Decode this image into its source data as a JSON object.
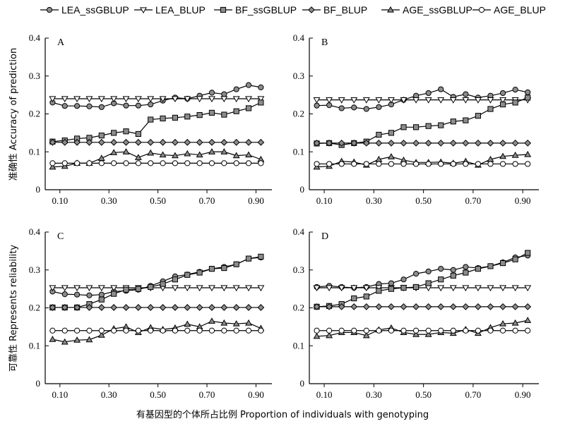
{
  "chart_data": {
    "type": "line",
    "x": [
      0.07,
      0.12,
      0.17,
      0.22,
      0.27,
      0.32,
      0.37,
      0.42,
      0.47,
      0.52,
      0.57,
      0.62,
      0.67,
      0.72,
      0.77,
      0.82,
      0.87,
      0.92
    ],
    "x_ticks": [
      "0.10",
      "0.30",
      "0.50",
      "0.70",
      "0.90"
    ],
    "x_tick_values": [
      0.1,
      0.3,
      0.5,
      0.7,
      0.9
    ],
    "xlim": [
      0.04,
      0.965
    ],
    "xlabel": "有基因型的个体所占比例 Proportion of individuals with genotyping",
    "legend": {
      "position": "top",
      "entries": [
        {
          "name": "LEA_ssGBLUP",
          "marker": "circle-gray"
        },
        {
          "name": "LEA_BLUP",
          "marker": "triangle-down-white"
        },
        {
          "name": "BF_ssGBLUP",
          "marker": "square-gray"
        },
        {
          "name": "BF_BLUP",
          "marker": "diamond-gray"
        },
        {
          "name": "AGE_ssGBLUP",
          "marker": "triangle-up-gray"
        },
        {
          "name": "AGE_BLUP",
          "marker": "circle-white"
        }
      ]
    },
    "panels": [
      {
        "label": "A",
        "ylabel": "准确性 Accuracy of prediction",
        "ylim": [
          0,
          0.4
        ],
        "y_ticks": [
          "0",
          "0.1",
          "0.2",
          "0.3",
          "0.4"
        ],
        "series": [
          {
            "name": "LEA_ssGBLUP",
            "values": [
              0.23,
              0.221,
              0.221,
              0.22,
              0.218,
              0.228,
              0.222,
              0.222,
              0.225,
              0.235,
              0.243,
              0.24,
              0.248,
              0.256,
              0.252,
              0.265,
              0.276,
              0.27
            ]
          },
          {
            "name": "LEA_BLUP",
            "values": [
              0.24,
              0.24,
              0.24,
              0.24,
              0.24,
              0.24,
              0.24,
              0.24,
              0.24,
              0.24,
              0.24,
              0.24,
              0.24,
              0.24,
              0.24,
              0.24,
              0.24,
              0.24
            ]
          },
          {
            "name": "BF_ssGBLUP",
            "values": [
              0.127,
              0.13,
              0.135,
              0.137,
              0.143,
              0.15,
              0.154,
              0.147,
              0.185,
              0.188,
              0.19,
              0.193,
              0.197,
              0.203,
              0.198,
              0.207,
              0.215,
              0.23
            ]
          },
          {
            "name": "BF_BLUP",
            "values": [
              0.125,
              0.125,
              0.125,
              0.125,
              0.125,
              0.125,
              0.125,
              0.125,
              0.125,
              0.125,
              0.125,
              0.125,
              0.125,
              0.125,
              0.125,
              0.125,
              0.125,
              0.125
            ]
          },
          {
            "name": "AGE_ssGBLUP",
            "values": [
              0.06,
              0.062,
              0.07,
              0.07,
              0.083,
              0.098,
              0.1,
              0.085,
              0.097,
              0.092,
              0.09,
              0.095,
              0.092,
              0.1,
              0.1,
              0.09,
              0.092,
              0.08
            ]
          },
          {
            "name": "AGE_BLUP",
            "values": [
              0.07,
              0.07,
              0.07,
              0.07,
              0.07,
              0.07,
              0.07,
              0.07,
              0.07,
              0.07,
              0.07,
              0.07,
              0.07,
              0.07,
              0.07,
              0.07,
              0.07,
              0.07
            ]
          }
        ]
      },
      {
        "label": "B",
        "ylabel": "",
        "ylim": [
          0,
          0.4
        ],
        "y_ticks": [
          "0",
          "0.1",
          "0.2",
          "0.3",
          "0.4"
        ],
        "series": [
          {
            "name": "LEA_ssGBLUP",
            "values": [
              0.222,
              0.223,
              0.215,
              0.217,
              0.213,
              0.218,
              0.225,
              0.237,
              0.248,
              0.255,
              0.265,
              0.245,
              0.252,
              0.243,
              0.248,
              0.255,
              0.264,
              0.257
            ]
          },
          {
            "name": "LEA_BLUP",
            "values": [
              0.237,
              0.237,
              0.237,
              0.237,
              0.237,
              0.237,
              0.237,
              0.237,
              0.237,
              0.237,
              0.237,
              0.237,
              0.237,
              0.237,
              0.237,
              0.237,
              0.237,
              0.237
            ]
          },
          {
            "name": "BF_ssGBLUP",
            "values": [
              0.122,
              0.123,
              0.118,
              0.123,
              0.127,
              0.145,
              0.15,
              0.165,
              0.165,
              0.168,
              0.17,
              0.18,
              0.183,
              0.195,
              0.213,
              0.225,
              0.23,
              0.243
            ]
          },
          {
            "name": "BF_BLUP",
            "values": [
              0.123,
              0.123,
              0.123,
              0.123,
              0.123,
              0.123,
              0.123,
              0.123,
              0.123,
              0.123,
              0.123,
              0.123,
              0.123,
              0.123,
              0.123,
              0.123,
              0.123,
              0.123
            ]
          },
          {
            "name": "AGE_ssGBLUP",
            "values": [
              0.06,
              0.062,
              0.075,
              0.073,
              0.065,
              0.08,
              0.087,
              0.078,
              0.072,
              0.072,
              0.073,
              0.07,
              0.075,
              0.065,
              0.08,
              0.088,
              0.091,
              0.093
            ]
          },
          {
            "name": "AGE_BLUP",
            "values": [
              0.068,
              0.068,
              0.068,
              0.068,
              0.068,
              0.068,
              0.068,
              0.068,
              0.068,
              0.068,
              0.068,
              0.068,
              0.068,
              0.068,
              0.068,
              0.068,
              0.068,
              0.068
            ]
          }
        ]
      },
      {
        "label": "C",
        "ylabel": "可靠性 Represents reliability",
        "ylim": [
          0,
          0.4
        ],
        "y_ticks": [
          "0",
          "0.1",
          "0.2",
          "0.3",
          "0.4"
        ],
        "series": [
          {
            "name": "LEA_ssGBLUP",
            "values": [
              0.243,
              0.236,
              0.235,
              0.233,
              0.235,
              0.243,
              0.245,
              0.248,
              0.258,
              0.27,
              0.283,
              0.288,
              0.295,
              0.303,
              0.308,
              0.315,
              0.33,
              0.333
            ]
          },
          {
            "name": "LEA_BLUP",
            "values": [
              0.253,
              0.253,
              0.253,
              0.253,
              0.253,
              0.253,
              0.253,
              0.253,
              0.253,
              0.253,
              0.253,
              0.253,
              0.253,
              0.253,
              0.253,
              0.253,
              0.253,
              0.253
            ]
          },
          {
            "name": "BF_ssGBLUP",
            "values": [
              0.201,
              0.201,
              0.201,
              0.21,
              0.222,
              0.237,
              0.248,
              0.25,
              0.255,
              0.263,
              0.275,
              0.287,
              0.293,
              0.303,
              0.305,
              0.315,
              0.33,
              0.335
            ]
          },
          {
            "name": "BF_BLUP",
            "values": [
              0.201,
              0.201,
              0.201,
              0.201,
              0.201,
              0.201,
              0.201,
              0.201,
              0.201,
              0.201,
              0.201,
              0.201,
              0.201,
              0.201,
              0.201,
              0.201,
              0.201,
              0.201
            ]
          },
          {
            "name": "AGE_ssGBLUP",
            "values": [
              0.117,
              0.11,
              0.115,
              0.116,
              0.128,
              0.145,
              0.15,
              0.135,
              0.148,
              0.143,
              0.147,
              0.157,
              0.15,
              0.165,
              0.16,
              0.158,
              0.16,
              0.146
            ]
          },
          {
            "name": "AGE_BLUP",
            "values": [
              0.14,
              0.14,
              0.14,
              0.14,
              0.14,
              0.14,
              0.14,
              0.14,
              0.14,
              0.14,
              0.14,
              0.14,
              0.14,
              0.14,
              0.14,
              0.14,
              0.14,
              0.14
            ]
          }
        ]
      },
      {
        "label": "D",
        "ylabel": "",
        "ylim": [
          0,
          0.4
        ],
        "y_ticks": [
          "0",
          "0.1",
          "0.2",
          "0.3",
          "0.4"
        ],
        "series": [
          {
            "name": "LEA_ssGBLUP",
            "values": [
              0.255,
              0.258,
              0.255,
              0.253,
              0.255,
              0.263,
              0.265,
              0.275,
              0.29,
              0.296,
              0.303,
              0.3,
              0.308,
              0.305,
              0.31,
              0.32,
              0.333,
              0.338
            ]
          },
          {
            "name": "LEA_BLUP",
            "values": [
              0.253,
              0.253,
              0.253,
              0.253,
              0.253,
              0.253,
              0.253,
              0.253,
              0.253,
              0.253,
              0.253,
              0.253,
              0.253,
              0.253,
              0.253,
              0.253,
              0.253,
              0.253
            ]
          },
          {
            "name": "BF_ssGBLUP",
            "values": [
              0.203,
              0.205,
              0.21,
              0.225,
              0.23,
              0.245,
              0.25,
              0.253,
              0.255,
              0.265,
              0.275,
              0.285,
              0.293,
              0.303,
              0.31,
              0.318,
              0.328,
              0.345
            ]
          },
          {
            "name": "BF_BLUP",
            "values": [
              0.203,
              0.203,
              0.203,
              0.203,
              0.203,
              0.203,
              0.203,
              0.203,
              0.203,
              0.203,
              0.203,
              0.203,
              0.203,
              0.203,
              0.203,
              0.203,
              0.203,
              0.203
            ]
          },
          {
            "name": "AGE_ssGBLUP",
            "values": [
              0.125,
              0.127,
              0.135,
              0.135,
              0.127,
              0.142,
              0.147,
              0.135,
              0.13,
              0.13,
              0.135,
              0.133,
              0.143,
              0.133,
              0.148,
              0.158,
              0.16,
              0.167
            ]
          },
          {
            "name": "AGE_BLUP",
            "values": [
              0.14,
              0.14,
              0.14,
              0.14,
              0.14,
              0.14,
              0.14,
              0.14,
              0.14,
              0.14,
              0.14,
              0.14,
              0.14,
              0.14,
              0.14,
              0.14,
              0.14,
              0.14
            ]
          }
        ]
      }
    ]
  }
}
